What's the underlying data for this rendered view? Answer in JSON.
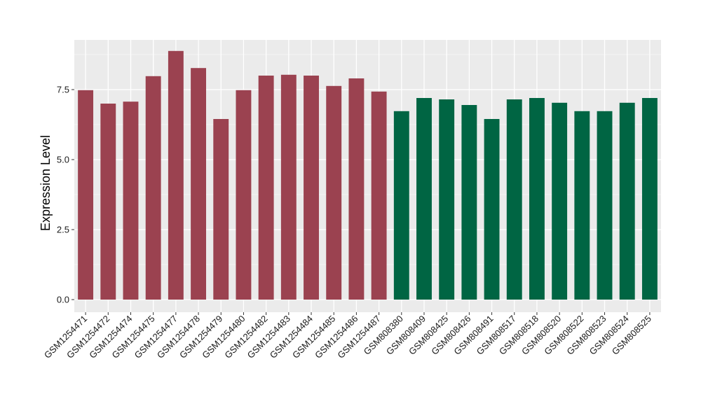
{
  "chart_data": {
    "type": "bar",
    "title": "",
    "xlabel": "",
    "ylabel": "Expression Level",
    "ylim": [
      0,
      8.95
    ],
    "yticks": [
      0.0,
      2.5,
      5.0,
      7.5
    ],
    "ytick_labels": [
      "0.0",
      "2.5",
      "5.0",
      "7.5"
    ],
    "grid": true,
    "legend": "none",
    "colors": {
      "group1": "#9b4250",
      "group2": "#006543",
      "panel": "#ebebeb",
      "grid": "#ffffff"
    },
    "categories": [
      "GSM1254471",
      "GSM1254472",
      "GSM1254474",
      "GSM1254475",
      "GSM1254477",
      "GSM1254478",
      "GSM1254479",
      "GSM1254480",
      "GSM1254482",
      "GSM1254483",
      "GSM1254484",
      "GSM1254485",
      "GSM1254486",
      "GSM1254487",
      "GSM808380",
      "GSM808409",
      "GSM808425",
      "GSM808426",
      "GSM808491",
      "GSM808517",
      "GSM808518",
      "GSM808520",
      "GSM808522",
      "GSM808523",
      "GSM808524",
      "GSM808525"
    ],
    "values": [
      7.48,
      7.0,
      7.07,
      7.98,
      8.88,
      8.27,
      6.45,
      7.48,
      8.0,
      8.03,
      8.0,
      7.63,
      7.9,
      7.43,
      6.73,
      7.2,
      7.15,
      6.95,
      6.45,
      7.15,
      7.2,
      7.03,
      6.73,
      6.73,
      7.03,
      7.2
    ],
    "group": [
      1,
      1,
      1,
      1,
      1,
      1,
      1,
      1,
      1,
      1,
      1,
      1,
      1,
      1,
      2,
      2,
      2,
      2,
      2,
      2,
      2,
      2,
      2,
      2,
      2,
      2
    ]
  }
}
